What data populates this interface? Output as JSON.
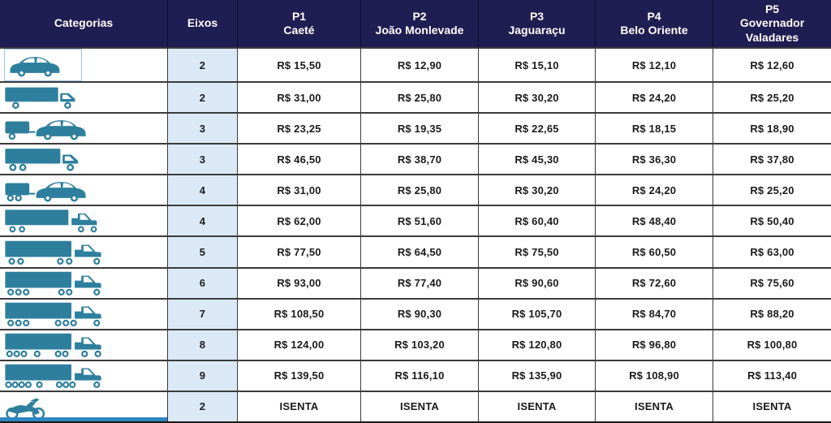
{
  "title": "Tabela de tarifas de pedágio por categoria e praça",
  "colors": {
    "header_bg": "#1e1e52",
    "header_text": "#ffffff",
    "eixos_bg": "#dbe9f7",
    "icon_teal": "#2e7f9d",
    "row_border": "#3b3b3b",
    "frame_blue": "#9dc3e6",
    "bottom_strip_blue": "#2e86c1"
  },
  "header": {
    "categorias": "Categorias",
    "eixos": "Eixos",
    "plazas": [
      {
        "code": "P1",
        "name": "Caeté"
      },
      {
        "code": "P2",
        "name": "João Monlevade"
      },
      {
        "code": "P3",
        "name": "Jaguaraçu"
      },
      {
        "code": "P4",
        "name": "Belo Oriente"
      },
      {
        "code": "P5",
        "name": "Governador Valadares"
      }
    ]
  },
  "rows": [
    {
      "icon": "car",
      "framed": true,
      "eixos": "2",
      "values": [
        "R$ 15,50",
        "R$ 12,90",
        "R$ 15,10",
        "R$ 12,10",
        "R$ 12,60"
      ]
    },
    {
      "icon": "truck-2",
      "framed": false,
      "eixos": "2",
      "values": [
        "R$ 31,00",
        "R$ 25,80",
        "R$ 30,20",
        "R$ 24,20",
        "R$ 25,20"
      ]
    },
    {
      "icon": "car-trailer-1",
      "framed": false,
      "eixos": "3",
      "values": [
        "R$ 23,25",
        "R$ 19,35",
        "R$ 22,65",
        "R$ 18,15",
        "R$ 18,90"
      ]
    },
    {
      "icon": "truck-3",
      "framed": false,
      "eixos": "3",
      "values": [
        "R$ 46,50",
        "R$ 38,70",
        "R$ 45,30",
        "R$ 36,30",
        "R$ 37,80"
      ]
    },
    {
      "icon": "car-trailer-2",
      "framed": false,
      "eixos": "4",
      "values": [
        "R$ 31,00",
        "R$ 25,80",
        "R$ 30,20",
        "R$ 24,20",
        "R$ 25,20"
      ]
    },
    {
      "icon": "semi-4",
      "framed": false,
      "eixos": "4",
      "values": [
        "R$ 62,00",
        "R$ 51,60",
        "R$ 60,40",
        "R$ 48,40",
        "R$ 50,40"
      ]
    },
    {
      "icon": "semi-5",
      "framed": false,
      "eixos": "5",
      "values": [
        "R$ 77,50",
        "R$ 64,50",
        "R$ 75,50",
        "R$ 60,50",
        "R$ 63,00"
      ]
    },
    {
      "icon": "semi-6",
      "framed": false,
      "eixos": "6",
      "values": [
        "R$ 93,00",
        "R$ 77,40",
        "R$ 90,60",
        "R$ 72,60",
        "R$ 75,60"
      ]
    },
    {
      "icon": "semi-7",
      "framed": false,
      "eixos": "7",
      "values": [
        "R$ 108,50",
        "R$ 90,30",
        "R$ 105,70",
        "R$ 84,70",
        "R$ 88,20"
      ]
    },
    {
      "icon": "semi-8",
      "framed": false,
      "eixos": "8",
      "values": [
        "R$ 124,00",
        "R$ 103,20",
        "R$ 120,80",
        "R$ 96,80",
        "R$ 100,80"
      ]
    },
    {
      "icon": "semi-9",
      "framed": false,
      "eixos": "9",
      "values": [
        "R$ 139,50",
        "R$ 116,10",
        "R$ 135,90",
        "R$ 108,90",
        "R$ 113,40"
      ]
    },
    {
      "icon": "motorcycle",
      "framed": false,
      "eixos": "2",
      "values": [
        "ISENTA",
        "ISENTA",
        "ISENTA",
        "ISENTA",
        "ISENTA"
      ]
    }
  ],
  "chart_data": {
    "type": "table",
    "columns": [
      "Categorias",
      "Eixos",
      "P1 Caeté",
      "P2 João Monlevade",
      "P3 Jaguaraçu",
      "P4 Belo Oriente",
      "P5 Governador Valadares"
    ],
    "rows": [
      [
        "car",
        "2",
        "R$ 15,50",
        "R$ 12,90",
        "R$ 15,10",
        "R$ 12,10",
        "R$ 12,60"
      ],
      [
        "truck-2",
        "2",
        "R$ 31,00",
        "R$ 25,80",
        "R$ 30,20",
        "R$ 24,20",
        "R$ 25,20"
      ],
      [
        "car-trailer-1",
        "3",
        "R$ 23,25",
        "R$ 19,35",
        "R$ 22,65",
        "R$ 18,15",
        "R$ 18,90"
      ],
      [
        "truck-3",
        "3",
        "R$ 46,50",
        "R$ 38,70",
        "R$ 45,30",
        "R$ 36,30",
        "R$ 37,80"
      ],
      [
        "car-trailer-2",
        "4",
        "R$ 31,00",
        "R$ 25,80",
        "R$ 30,20",
        "R$ 24,20",
        "R$ 25,20"
      ],
      [
        "semi-4",
        "4",
        "R$ 62,00",
        "R$ 51,60",
        "R$ 60,40",
        "R$ 48,40",
        "R$ 50,40"
      ],
      [
        "semi-5",
        "5",
        "R$ 77,50",
        "R$ 64,50",
        "R$ 75,50",
        "R$ 60,50",
        "R$ 63,00"
      ],
      [
        "semi-6",
        "6",
        "R$ 93,00",
        "R$ 77,40",
        "R$ 90,60",
        "R$ 72,60",
        "R$ 75,60"
      ],
      [
        "semi-7",
        "7",
        "R$ 108,50",
        "R$ 90,30",
        "R$ 105,70",
        "R$ 84,70",
        "R$ 88,20"
      ],
      [
        "semi-8",
        "8",
        "R$ 124,00",
        "R$ 103,20",
        "R$ 120,80",
        "R$ 96,80",
        "R$ 100,80"
      ],
      [
        "semi-9",
        "9",
        "R$ 139,50",
        "R$ 116,10",
        "R$ 135,90",
        "R$ 108,90",
        "R$ 113,40"
      ],
      [
        "motorcycle",
        "2",
        "ISENTA",
        "ISENTA",
        "ISENTA",
        "ISENTA",
        "ISENTA"
      ]
    ]
  }
}
